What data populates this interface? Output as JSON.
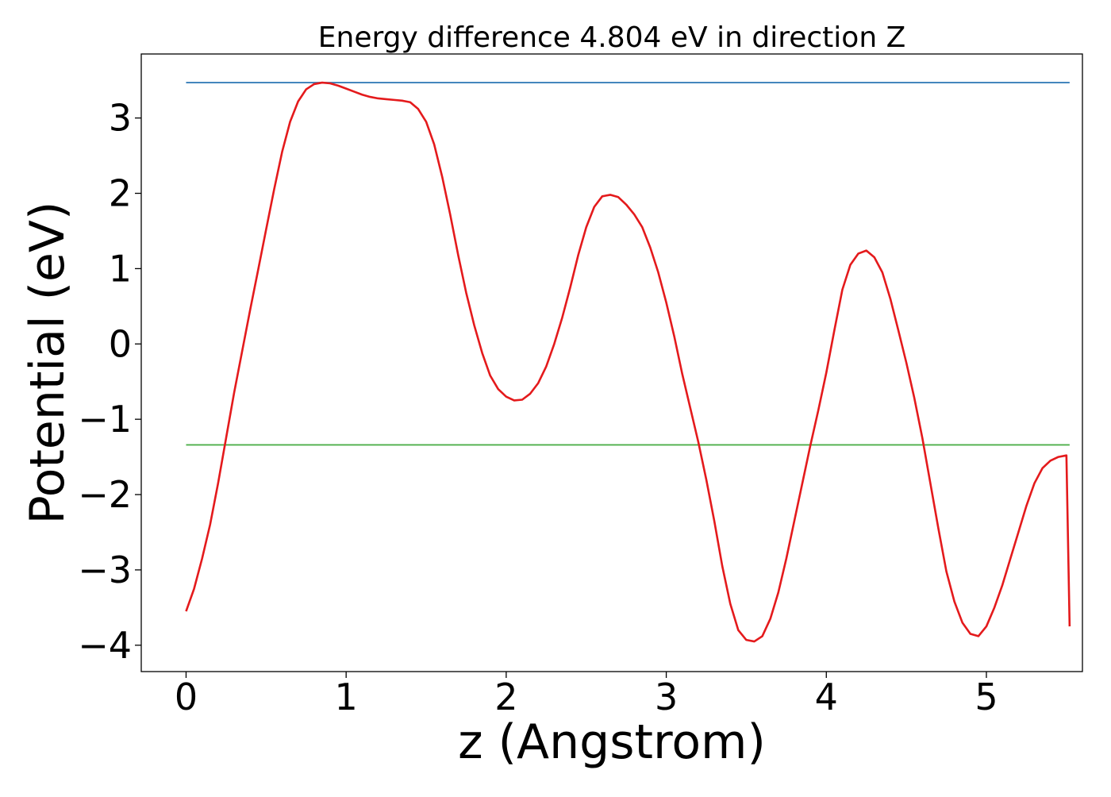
{
  "chart_data": {
    "type": "line",
    "title": "Energy difference 4.804 eV in direction Z",
    "xlabel": "z (Angstrom)",
    "ylabel": "Potential (eV)",
    "xlim": [
      -0.28,
      5.6
    ],
    "ylim": [
      -4.35,
      3.85
    ],
    "x_ticks": [
      0,
      1,
      2,
      3,
      4,
      5
    ],
    "x_tick_labels": [
      "0",
      "1",
      "2",
      "3",
      "4",
      "5"
    ],
    "y_ticks": [
      3,
      2,
      1,
      0,
      -1,
      -2,
      -3,
      -4
    ],
    "y_tick_labels": [
      "3",
      "2",
      "1",
      "0",
      "−1",
      "−2",
      "−3",
      "−4"
    ],
    "grid": false,
    "legend": "none",
    "series": [
      {
        "color": "#e41a1c",
        "x": [
          0,
          0.05,
          0.1,
          0.15,
          0.2,
          0.25,
          0.3,
          0.35,
          0.4,
          0.45,
          0.5,
          0.55,
          0.6,
          0.65,
          0.7,
          0.75,
          0.8,
          0.85,
          0.9,
          0.95,
          1.0,
          1.05,
          1.1,
          1.15,
          1.2,
          1.25,
          1.3,
          1.35,
          1.4,
          1.45,
          1.5,
          1.55,
          1.6,
          1.65,
          1.7,
          1.75,
          1.8,
          1.85,
          1.9,
          1.95,
          2.0,
          2.05,
          2.1,
          2.15,
          2.2,
          2.25,
          2.3,
          2.35,
          2.4,
          2.45,
          2.5,
          2.55,
          2.6,
          2.65,
          2.7,
          2.75,
          2.8,
          2.85,
          2.9,
          2.95,
          3.0,
          3.05,
          3.1,
          3.15,
          3.2,
          3.25,
          3.3,
          3.35,
          3.4,
          3.45,
          3.5,
          3.55,
          3.6,
          3.65,
          3.7,
          3.75,
          3.8,
          3.85,
          3.9,
          3.95,
          4.0,
          4.05,
          4.1,
          4.15,
          4.2,
          4.25,
          4.3,
          4.35,
          4.4,
          4.45,
          4.5,
          4.55,
          4.6,
          4.65,
          4.7,
          4.75,
          4.8,
          4.85,
          4.9,
          4.95,
          5.0,
          5.05,
          5.1,
          5.15,
          5.2,
          5.25,
          5.3,
          5.35,
          5.4,
          5.45,
          5.5,
          5.52
        ],
        "y": [
          -3.55,
          -3.25,
          -2.85,
          -2.4,
          -1.85,
          -1.25,
          -0.65,
          -0.1,
          0.45,
          0.98,
          1.52,
          2.05,
          2.55,
          2.95,
          3.22,
          3.38,
          3.45,
          3.47,
          3.46,
          3.43,
          3.39,
          3.35,
          3.31,
          3.28,
          3.26,
          3.25,
          3.24,
          3.23,
          3.21,
          3.12,
          2.95,
          2.65,
          2.22,
          1.72,
          1.18,
          0.68,
          0.25,
          -0.12,
          -0.42,
          -0.6,
          -0.7,
          -0.75,
          -0.74,
          -0.66,
          -0.52,
          -0.3,
          0.0,
          0.35,
          0.75,
          1.18,
          1.55,
          1.82,
          1.96,
          1.98,
          1.95,
          1.85,
          1.72,
          1.55,
          1.28,
          0.95,
          0.55,
          0.1,
          -0.4,
          -0.85,
          -1.3,
          -1.8,
          -2.35,
          -2.95,
          -3.45,
          -3.8,
          -3.93,
          -3.95,
          -3.88,
          -3.65,
          -3.3,
          -2.85,
          -2.35,
          -1.85,
          -1.35,
          -0.88,
          -0.38,
          0.18,
          0.72,
          1.05,
          1.2,
          1.24,
          1.15,
          0.95,
          0.6,
          0.18,
          -0.25,
          -0.72,
          -1.25,
          -1.85,
          -2.45,
          -3.02,
          -3.42,
          -3.7,
          -3.85,
          -3.88,
          -3.75,
          -3.5,
          -3.2,
          -2.85,
          -2.5,
          -2.15,
          -1.85,
          -1.65,
          -1.55,
          -1.5,
          -1.48,
          -3.75
        ],
        "note_style": "solid"
      },
      {
        "color": "#377eb8",
        "x": [
          0,
          5.52
        ],
        "y": [
          3.47,
          3.47
        ]
      },
      {
        "color": "#4daf4a",
        "x": [
          0,
          5.52
        ],
        "y": [
          -1.34,
          -1.34
        ]
      }
    ]
  }
}
